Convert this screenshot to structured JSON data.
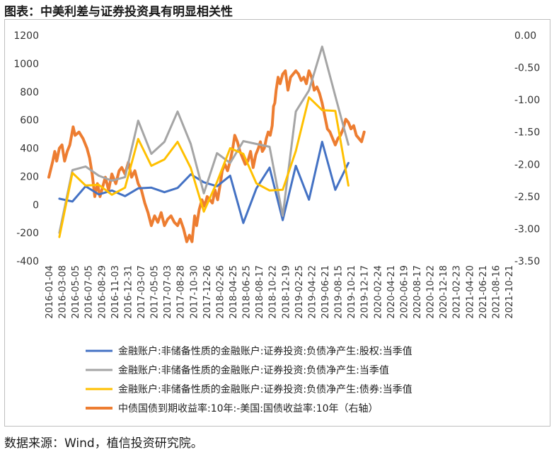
{
  "title": "图表：中美利差与证券投资具有明显相关性",
  "source": "数据来源：Wind，植信投资研究院。",
  "chart_data": {
    "type": "line",
    "left_axis": {
      "min": -400,
      "max": 1200,
      "ticks": [
        "1200",
        "1000",
        "800",
        "600",
        "400",
        "200",
        "0",
        "-200",
        "-400"
      ]
    },
    "right_axis": {
      "min": -3.5,
      "max": 0.0,
      "ticks": [
        "0.00",
        "-0.50",
        "-1.00",
        "-1.50",
        "-2.00",
        "-2.50",
        "-3.00",
        "-3.50"
      ]
    },
    "grid": false,
    "legend_position": "bottom",
    "x_tick_labels": [
      "2016-01-04",
      "2016-03-08",
      "2016-05-05",
      "2016-07-05",
      "2016-08-29",
      "2016-11-03",
      "2016-12-31",
      "2017-03-07",
      "2017-05-05",
      "2017-07-03",
      "2017-08-28",
      "2017-10-30",
      "2017-12-26",
      "2018-02-26",
      "2018-04-25",
      "2018-06-25",
      "2018-08-17",
      "2018-10-22",
      "2018-12-19",
      "2019-02-25",
      "2019-04-22",
      "2019-06-21",
      "2019-08-15",
      "2019-10-21",
      "2019-12-17",
      "2020-02-24",
      "2020-04-21",
      "2020-06-19",
      "2020-08-17",
      "2020-10-22",
      "2020-12-18",
      "2021-02-23",
      "2021-04-20",
      "2021-06-21",
      "2021-08-16",
      "2021-10-21"
    ],
    "series": [
      {
        "name": "金融账户:非储备性质的金融账户:证券投资:负债净产生:股权:当季值",
        "color": "#4472c4",
        "axis": "left",
        "points": [
          [
            0.8,
            42
          ],
          [
            1.8,
            22
          ],
          [
            2.8,
            130
          ],
          [
            3.8,
            72
          ],
          [
            4.8,
            100
          ],
          [
            5.8,
            60
          ],
          [
            6.8,
            115
          ],
          [
            7.8,
            120
          ],
          [
            8.8,
            88
          ],
          [
            9.8,
            118
          ],
          [
            10.8,
            215
          ],
          [
            11.8,
            158
          ],
          [
            12.8,
            130
          ],
          [
            13.8,
            205
          ],
          [
            14.8,
            -130
          ],
          [
            15.8,
            115
          ],
          [
            16.8,
            262
          ],
          [
            17.8,
            -110
          ],
          [
            18.8,
            275
          ],
          [
            19.8,
            35
          ],
          [
            20.8,
            445
          ],
          [
            21.8,
            105
          ],
          [
            22.8,
            295
          ]
        ]
      },
      {
        "name": "金融账户:非储备性质的金融账户:证券投资:负债净产生:当季值",
        "color": "#a5a5a5",
        "axis": "left",
        "points": [
          [
            0.8,
            -200
          ],
          [
            1.8,
            245
          ],
          [
            2.8,
            270
          ],
          [
            3.8,
            205
          ],
          [
            4.8,
            170
          ],
          [
            5.8,
            195
          ],
          [
            6.8,
            595
          ],
          [
            7.8,
            360
          ],
          [
            8.8,
            445
          ],
          [
            9.8,
            660
          ],
          [
            10.8,
            430
          ],
          [
            11.8,
            80
          ],
          [
            12.8,
            365
          ],
          [
            13.8,
            295
          ],
          [
            14.8,
            450
          ],
          [
            15.8,
            430
          ],
          [
            16.8,
            410
          ],
          [
            17.8,
            -80
          ],
          [
            18.8,
            660
          ],
          [
            19.8,
            810
          ],
          [
            20.8,
            1120
          ],
          [
            21.8,
            770
          ],
          [
            22.8,
            425
          ]
        ]
      },
      {
        "name": "金融账户:非储备性质的金融账户:证券投资:负债净产生:债券:当季值",
        "color": "#ffc000",
        "axis": "left",
        "points": [
          [
            0.8,
            -230
          ],
          [
            1.8,
            225
          ],
          [
            2.8,
            135
          ],
          [
            3.8,
            140
          ],
          [
            4.8,
            70
          ],
          [
            5.8,
            120
          ],
          [
            6.8,
            465
          ],
          [
            7.8,
            275
          ],
          [
            8.8,
            320
          ],
          [
            9.8,
            445
          ],
          [
            10.8,
            260
          ],
          [
            11.8,
            -50
          ],
          [
            12.8,
            160
          ],
          [
            13.8,
            400
          ],
          [
            14.8,
            360
          ],
          [
            15.8,
            150
          ],
          [
            16.8,
            100
          ],
          [
            17.8,
            105
          ],
          [
            18.8,
            380
          ],
          [
            19.8,
            760
          ],
          [
            20.8,
            670
          ],
          [
            21.8,
            665
          ],
          [
            22.8,
            135
          ]
        ]
      },
      {
        "name": "中债国债到期收益率:10年:-美国:国债收益率:10年（右轴）",
        "color": "#ed7d31",
        "axis": "right",
        "points": [
          [
            0.0,
            -2.2
          ],
          [
            0.3,
            -1.95
          ],
          [
            0.45,
            -1.8
          ],
          [
            0.6,
            -1.95
          ],
          [
            0.8,
            -1.75
          ],
          [
            1.0,
            -1.7
          ],
          [
            1.2,
            -1.95
          ],
          [
            1.4,
            -1.8
          ],
          [
            1.6,
            -1.7
          ],
          [
            1.85,
            -1.42
          ],
          [
            2.0,
            -1.55
          ],
          [
            2.3,
            -1.5
          ],
          [
            2.6,
            -1.6
          ],
          [
            2.9,
            -1.75
          ],
          [
            3.1,
            -1.9
          ],
          [
            3.3,
            -2.15
          ],
          [
            3.5,
            -2.5
          ],
          [
            3.7,
            -2.3
          ],
          [
            3.9,
            -2.5
          ],
          [
            4.1,
            -2.35
          ],
          [
            4.3,
            -2.2
          ],
          [
            4.55,
            -2.4
          ],
          [
            4.8,
            -2.15
          ],
          [
            5.1,
            -2.3
          ],
          [
            5.35,
            -2.1
          ],
          [
            5.55,
            -2.05
          ],
          [
            5.8,
            -2.15
          ],
          [
            6.05,
            -1.97
          ],
          [
            6.3,
            -2.2
          ],
          [
            6.55,
            -2.1
          ],
          [
            6.8,
            -2.3
          ],
          [
            7.05,
            -2.4
          ],
          [
            7.3,
            -2.6
          ],
          [
            7.55,
            -2.75
          ],
          [
            7.8,
            -2.95
          ],
          [
            8.05,
            -2.8
          ],
          [
            8.3,
            -2.9
          ],
          [
            8.55,
            -2.75
          ],
          [
            8.8,
            -2.95
          ],
          [
            9.05,
            -2.85
          ],
          [
            9.3,
            -2.8
          ],
          [
            9.55,
            -2.9
          ],
          [
            9.8,
            -2.95
          ],
          [
            10.0,
            -2.85
          ],
          [
            10.25,
            -3.0
          ],
          [
            10.5,
            -3.2
          ],
          [
            10.7,
            -3.1
          ],
          [
            10.9,
            -3.2
          ],
          [
            11.1,
            -2.8
          ],
          [
            11.25,
            -2.95
          ],
          [
            11.45,
            -2.7
          ],
          [
            11.65,
            -2.55
          ],
          [
            11.85,
            -2.65
          ],
          [
            12.05,
            -2.5
          ],
          [
            12.25,
            -2.55
          ],
          [
            12.45,
            -2.6
          ],
          [
            12.65,
            -2.4
          ],
          [
            12.85,
            -2.55
          ],
          [
            13.05,
            -2.3
          ],
          [
            13.2,
            -2.1
          ],
          [
            13.4,
            -2.0
          ],
          [
            13.6,
            -2.1
          ],
          [
            13.8,
            -1.95
          ],
          [
            14.0,
            -1.75
          ],
          [
            14.15,
            -1.55
          ],
          [
            14.35,
            -1.65
          ],
          [
            14.55,
            -1.8
          ],
          [
            14.75,
            -1.9
          ],
          [
            14.95,
            -2.0
          ],
          [
            15.15,
            -1.95
          ],
          [
            15.35,
            -1.8
          ],
          [
            15.55,
            -2.05
          ],
          [
            15.75,
            -1.85
          ],
          [
            15.95,
            -1.75
          ],
          [
            16.1,
            -1.65
          ],
          [
            16.25,
            -1.8
          ],
          [
            16.4,
            -1.75
          ],
          [
            16.55,
            -1.6
          ],
          [
            16.7,
            -1.5
          ],
          [
            16.85,
            -1.55
          ],
          [
            17.0,
            -1.4
          ],
          [
            17.1,
            -1.1
          ],
          [
            17.2,
            -1.05
          ],
          [
            17.3,
            -0.85
          ],
          [
            17.45,
            -0.65
          ],
          [
            17.6,
            -0.75
          ],
          [
            17.8,
            -0.6
          ],
          [
            18.0,
            -0.55
          ],
          [
            18.2,
            -0.85
          ],
          [
            18.4,
            -0.65
          ],
          [
            18.6,
            -0.6
          ],
          [
            18.8,
            -0.55
          ],
          [
            19.0,
            -0.6
          ],
          [
            19.2,
            -0.7
          ],
          [
            19.4,
            -0.65
          ],
          [
            19.6,
            -0.75
          ],
          [
            19.8,
            -0.55
          ],
          [
            20.0,
            -0.65
          ],
          [
            20.2,
            -0.85
          ],
          [
            20.4,
            -0.8
          ],
          [
            20.6,
            -0.9
          ],
          [
            20.8,
            -1.05
          ],
          [
            21.0,
            -1.25
          ],
          [
            21.2,
            -1.45
          ],
          [
            21.4,
            -1.5
          ],
          [
            21.6,
            -1.6
          ],
          [
            21.8,
            -1.7
          ],
          [
            22.0,
            -1.6
          ],
          [
            22.2,
            -1.55
          ],
          [
            22.4,
            -1.45
          ],
          [
            22.6,
            -1.3
          ],
          [
            22.8,
            -1.35
          ],
          [
            23.0,
            -1.45
          ],
          [
            23.2,
            -1.4
          ],
          [
            23.4,
            -1.55
          ],
          [
            23.6,
            -1.6
          ],
          [
            23.8,
            -1.65
          ],
          [
            24.0,
            -1.5
          ]
        ]
      }
    ]
  }
}
